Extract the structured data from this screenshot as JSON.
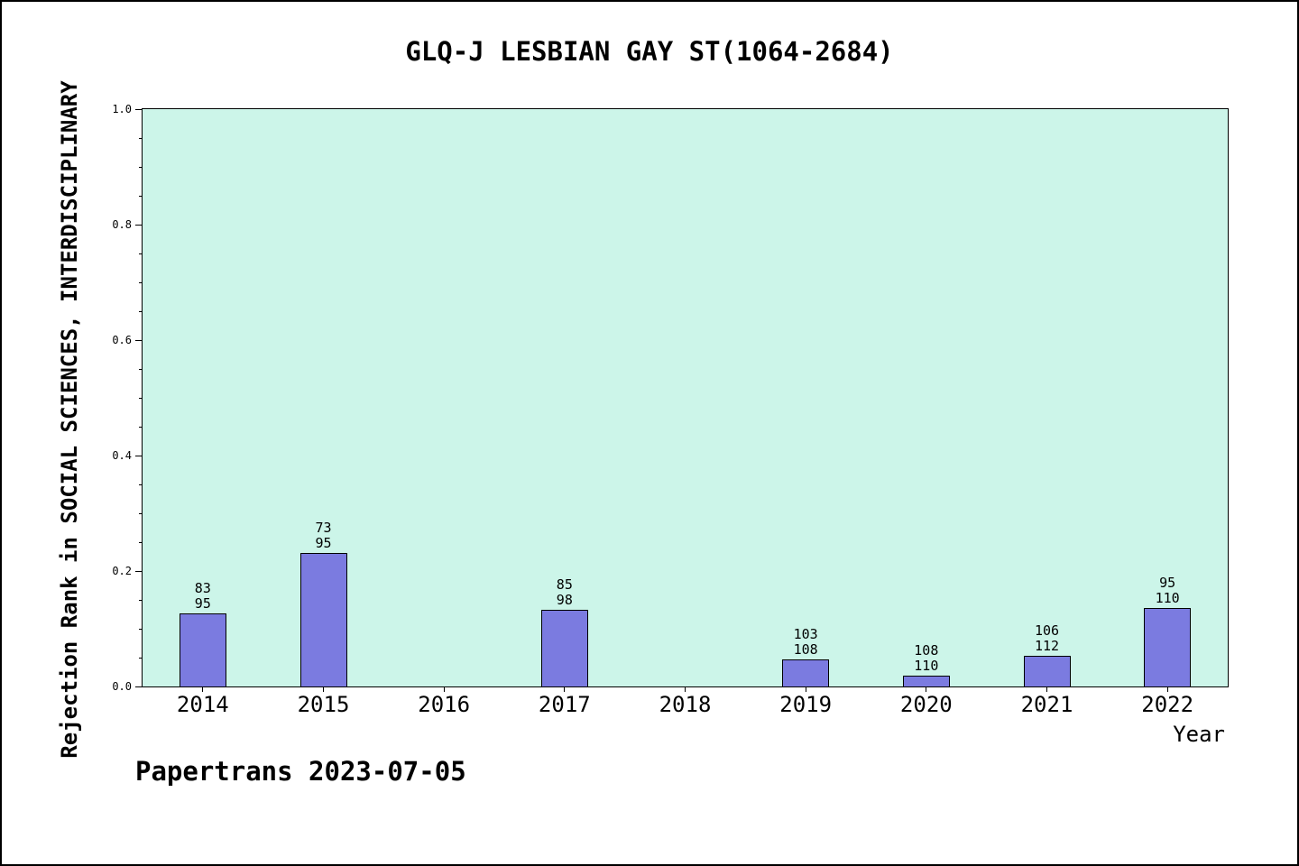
{
  "footer": "Papertrans 2023-07-05",
  "colors": {
    "plot_bg": "#ccf5e9",
    "bar_fill": "#7b7be0",
    "bar_border": "#000000",
    "page_bg": "#ffffff"
  },
  "chart_data": {
    "type": "bar",
    "title": "GLQ-J LESBIAN GAY ST(1064-2684)",
    "xlabel": "Year",
    "ylabel": "Rejection Rank in SOCIAL SCIENCES, INTERDISCIPLINARY",
    "categories": [
      "2014",
      "2015",
      "2016",
      "2017",
      "2018",
      "2019",
      "2020",
      "2021",
      "2022"
    ],
    "values": [
      0.1263,
      0.2316,
      null,
      0.1327,
      null,
      0.0463,
      0.0182,
      0.0536,
      0.1364
    ],
    "bar_labels": [
      [
        "83",
        "95"
      ],
      [
        "73",
        "95"
      ],
      null,
      [
        "85",
        "98"
      ],
      null,
      [
        "103",
        "108"
      ],
      [
        "108",
        "110"
      ],
      [
        "106",
        "112"
      ],
      [
        "95",
        "110"
      ]
    ],
    "ylim": [
      0,
      1
    ],
    "yticks": [
      "0.0",
      "0.2",
      "0.4",
      "0.6",
      "0.8",
      "1.0"
    ],
    "ytick_minor_step": 0.05,
    "grid": false,
    "legend": null
  }
}
